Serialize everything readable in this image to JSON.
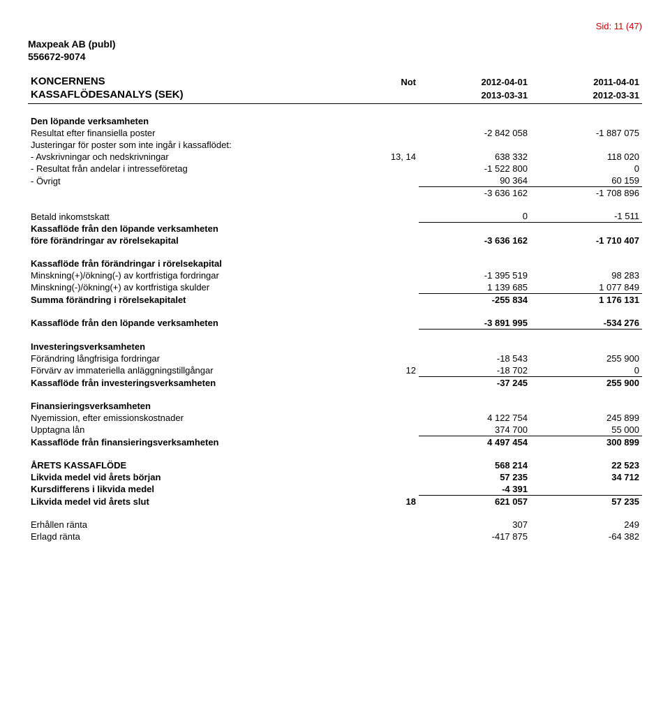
{
  "page_number": "Sid: 11 (47)",
  "company": "Maxpeak AB (publ)",
  "org_number": "556672-9074",
  "header": {
    "title1": "KONCERNENS",
    "title2": "KASSAFLÖDESANALYS (SEK)",
    "not_label": "Not",
    "period_a_start": "2012-04-01",
    "period_a_end": "2013-03-31",
    "period_b_start": "2011-04-01",
    "period_b_end": "2012-03-31"
  },
  "s1": {
    "heading": "Den löpande verksamheten",
    "r1": {
      "label": "Resultat efter finansiella poster",
      "a": "-2 842 058",
      "b": "-1 887 075"
    },
    "adj_label": "Justeringar för poster som inte ingår i kassaflödet:",
    "r2": {
      "label": "- Avskrivningar och nedskrivningar",
      "not": "13, 14",
      "a": "638 332",
      "b": "118 020"
    },
    "r3": {
      "label": "- Resultat från andelar i intresseföretag",
      "a": "-1 522 800",
      "b": "0"
    },
    "r4": {
      "label": "- Övrigt",
      "a": "90 364",
      "b": "60 159"
    },
    "subtotal": {
      "a": "-3 636 162",
      "b": "-1 708 896"
    },
    "tax": {
      "label": "Betald inkomstskatt",
      "a": "0",
      "b": "-1 511"
    },
    "before_line1": "Kassaflöde från den löpande verksamheten",
    "before_line2": "före förändringar av rörelsekapital",
    "before": {
      "a": "-3 636 162",
      "b": "-1 710 407"
    }
  },
  "s2": {
    "heading": "Kassaflöde från förändringar i rörelsekapital",
    "r1": {
      "label": "Minskning(+)/ökning(-) av kortfristiga fordringar",
      "a": "-1 395 519",
      "b": "98 283"
    },
    "r2": {
      "label": "Minskning(-)/ökning(+) av kortfristiga skulder",
      "a": "1 139 685",
      "b": "1 077 849"
    },
    "sum": {
      "label": "Summa förändring i rörelsekapitalet",
      "a": "-255 834",
      "b": "1 176 131"
    },
    "net": {
      "label": "Kassaflöde från den löpande verksamheten",
      "a": "-3 891 995",
      "b": "-534 276"
    }
  },
  "s3": {
    "heading": "Investeringsverksamheten",
    "r1": {
      "label": "Förändring långfrisiga fordringar",
      "a": "-18 543",
      "b": "255 900"
    },
    "r2": {
      "label": "Förvärv av immateriella anläggningstillgångar",
      "not": "12",
      "a": "-18 702",
      "b": "0"
    },
    "sum": {
      "label": "Kassaflöde från investeringsverksamheten",
      "a": "-37 245",
      "b": "255 900"
    }
  },
  "s4": {
    "heading": "Finansieringsverksamheten",
    "r1": {
      "label": "Nyemission, efter emissionskostnader",
      "a": "4 122 754",
      "b": "245 899"
    },
    "r2": {
      "label": "Upptagna lån",
      "a": "374 700",
      "b": "55 000"
    },
    "sum": {
      "label": "Kassaflöde från finansieringsverksamheten",
      "a": "4 497 454",
      "b": "300 899"
    }
  },
  "s5": {
    "r1": {
      "label": "ÅRETS KASSAFLÖDE",
      "a": "568 214",
      "b": "22 523"
    },
    "r2": {
      "label": "Likvida medel vid årets början",
      "a": "57 235",
      "b": "34 712"
    },
    "r3": {
      "label": "Kursdifferens i likvida medel",
      "a": "-4 391",
      "b": ""
    },
    "r4": {
      "label": "Likvida medel vid årets slut",
      "not": "18",
      "a": "621 057",
      "b": "57 235"
    }
  },
  "s6": {
    "r1": {
      "label": "Erhållen ränta",
      "a": "307",
      "b": "249"
    },
    "r2": {
      "label": "Erlagd ränta",
      "a": "-417 875",
      "b": "-64 382"
    }
  }
}
